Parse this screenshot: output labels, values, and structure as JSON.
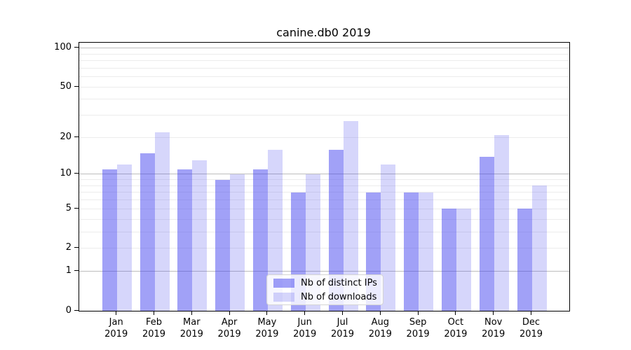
{
  "title": "canine.db0 2019",
  "legend": {
    "items": [
      {
        "label": "Nb of distinct IPs"
      },
      {
        "label": "Nb of downloads"
      }
    ]
  },
  "colors": {
    "bar_accent_base": "#4444ef",
    "bar_dark_blended": "#a4a4f7",
    "bar_light_blended": "#d6d6fa",
    "grid_minor": "#ececec",
    "grid_decade": "#bdbdbd",
    "axis": "#000000"
  },
  "chart_data": {
    "type": "bar",
    "title": "canine.db0 2019",
    "categories": [
      "Jan 2019",
      "Feb 2019",
      "Mar 2019",
      "Apr 2019",
      "May 2019",
      "Jun 2019",
      "Jul 2019",
      "Aug 2019",
      "Sep 2019",
      "Oct 2019",
      "Nov 2019",
      "Dec 2019"
    ],
    "months": [
      "Jan",
      "Feb",
      "Mar",
      "Apr",
      "May",
      "Jun",
      "Jul",
      "Aug",
      "Sep",
      "Oct",
      "Nov",
      "Dec"
    ],
    "year_label": "2019",
    "series": [
      {
        "name": "Nb of distinct IPs",
        "color": "rgba(68,68,239,0.50)",
        "values": [
          11,
          15,
          11,
          9,
          11,
          7,
          16,
          7,
          7,
          5,
          14,
          5
        ]
      },
      {
        "name": "Nb of downloads",
        "color": "rgba(68,68,239,0.22)",
        "values": [
          12,
          22,
          13,
          10,
          16,
          10,
          27,
          12,
          7,
          5,
          21,
          8
        ]
      }
    ],
    "xlabel": "",
    "ylabel": "",
    "y_scale": "log1p",
    "ylim": [
      0,
      110
    ],
    "y_ticks": [
      0,
      1,
      2,
      5,
      10,
      20,
      50,
      100
    ],
    "y_tick_labels": [
      "0",
      "1",
      "2",
      "5",
      "10",
      "20",
      "50",
      "100"
    ],
    "y_minor_gridline_values": [
      3,
      4,
      6,
      7,
      8,
      9,
      30,
      40,
      60,
      70,
      80,
      90
    ],
    "y_emphasized_gridline_values": [
      1,
      10,
      100
    ],
    "grid": true,
    "legend_position": "lower center"
  }
}
